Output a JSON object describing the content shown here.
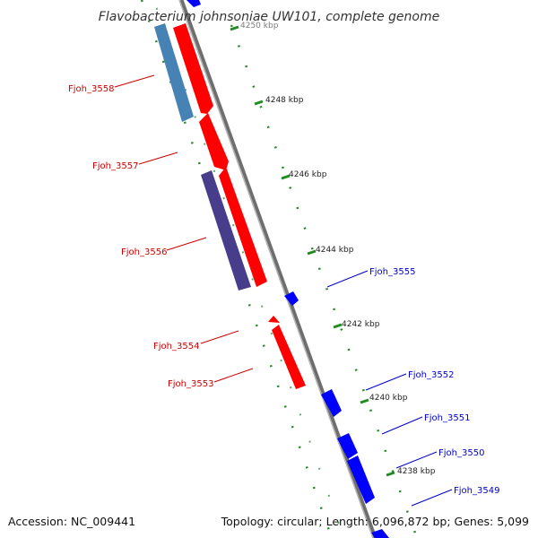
{
  "title": "Flavobacterium johnsoniae UW101, complete genome",
  "accession": "Accession: NC_009441",
  "summary": "Topology: circular; Length: 6,096,872 bp; Genes: 5,099",
  "colors": {
    "forward": "#ff0000",
    "reverse": "#0000ff",
    "cds_blue": "#4682b4",
    "cds_purple": "#483d8b",
    "backbone": "#808080",
    "tick": "#228b22",
    "label_forward": "#cc0000",
    "label_reverse": "#0000cc"
  },
  "ticks": [
    "4250 kbp",
    "4248 kbp",
    "4246 kbp",
    "4244 kbp",
    "4242 kbp",
    "4240 kbp",
    "4238 kbp"
  ],
  "genes_forward": [
    "Fjoh_3558",
    "Fjoh_3557",
    "Fjoh_3556",
    "Fjoh_3554",
    "Fjoh_3553"
  ],
  "genes_reverse": [
    "Fjoh_3555",
    "Fjoh_3552",
    "Fjoh_3551",
    "Fjoh_3550",
    "Fjoh_3549"
  ]
}
